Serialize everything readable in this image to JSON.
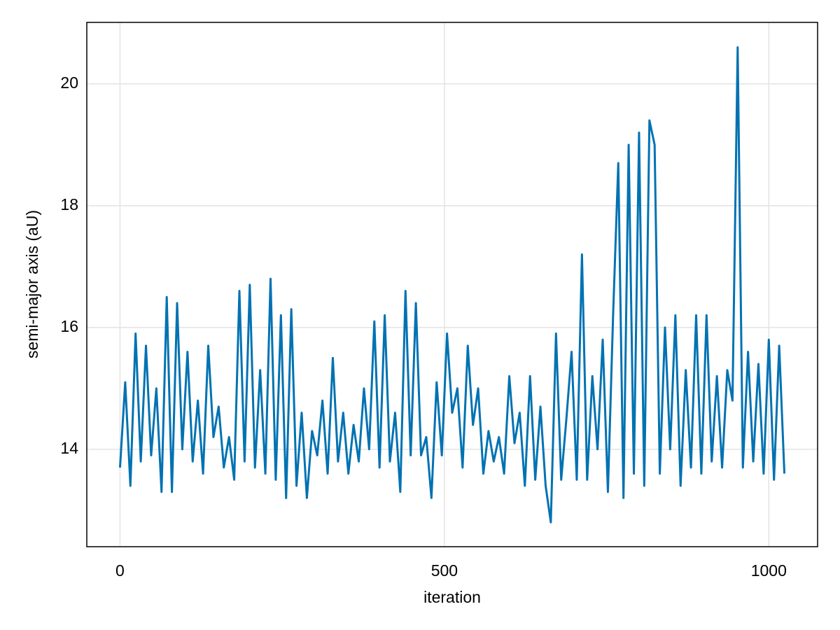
{
  "chart_data": {
    "type": "line",
    "xlabel": "iteration",
    "ylabel": "semi-major axis (aU)",
    "x": [
      0,
      8,
      16,
      24,
      32,
      40,
      48,
      56,
      64,
      72,
      80,
      88,
      96,
      104,
      112,
      120,
      128,
      136,
      144,
      152,
      160,
      168,
      176,
      184,
      192,
      200,
      208,
      216,
      224,
      232,
      240,
      248,
      256,
      264,
      272,
      280,
      288,
      296,
      304,
      312,
      320,
      328,
      336,
      344,
      352,
      360,
      368,
      376,
      384,
      392,
      400,
      408,
      416,
      424,
      432,
      440,
      448,
      456,
      464,
      472,
      480,
      488,
      496,
      504,
      512,
      520,
      528,
      536,
      544,
      552,
      560,
      568,
      576,
      584,
      592,
      600,
      608,
      616,
      624,
      632,
      640,
      648,
      656,
      664,
      672,
      680,
      688,
      696,
      704,
      712,
      720,
      728,
      736,
      744,
      752,
      760,
      768,
      776,
      784,
      792,
      800,
      808,
      816,
      824,
      832,
      840,
      848,
      856,
      864,
      872,
      880,
      888,
      896,
      904,
      912,
      920,
      928,
      936,
      944,
      952,
      960,
      968,
      976,
      984,
      992,
      1000,
      1008,
      1016,
      1024
    ],
    "values": [
      13.7,
      15.1,
      13.4,
      15.9,
      13.8,
      15.7,
      13.9,
      15.0,
      13.3,
      16.5,
      13.3,
      16.4,
      14.0,
      15.6,
      13.8,
      14.8,
      13.6,
      15.7,
      14.2,
      14.7,
      13.7,
      14.2,
      13.5,
      16.6,
      13.8,
      16.7,
      13.7,
      15.3,
      13.6,
      16.8,
      13.5,
      16.2,
      13.2,
      16.3,
      13.4,
      14.6,
      13.2,
      14.3,
      13.9,
      14.8,
      13.6,
      15.5,
      13.8,
      14.6,
      13.6,
      14.4,
      13.8,
      15.0,
      14.0,
      16.1,
      13.7,
      16.2,
      13.8,
      14.6,
      13.3,
      16.6,
      13.9,
      16.4,
      13.9,
      14.2,
      13.2,
      15.1,
      13.9,
      15.9,
      14.6,
      15.0,
      13.7,
      15.7,
      14.4,
      15.0,
      13.6,
      14.3,
      13.8,
      14.2,
      13.6,
      15.2,
      14.1,
      14.6,
      13.4,
      15.2,
      13.5,
      14.7,
      13.4,
      12.8,
      15.9,
      13.5,
      14.5,
      15.6,
      13.5,
      17.2,
      13.5,
      15.2,
      14.0,
      15.8,
      13.3,
      16.2,
      18.7,
      13.2,
      19.0,
      13.6,
      19.2,
      13.4,
      19.4,
      19.0,
      13.6,
      16.0,
      14.0,
      16.2,
      13.4,
      15.3,
      13.7,
      16.2,
      13.6,
      16.2,
      13.8,
      15.2,
      13.7,
      15.3,
      14.8,
      20.6,
      13.7,
      15.6,
      13.8,
      15.4,
      13.6,
      15.8,
      13.5,
      15.7,
      13.6
    ],
    "color": "#0072b2",
    "xlim": [
      -51.2,
      1075.2
    ],
    "ylim": [
      12.4,
      21.01
    ],
    "xticks": [
      0,
      500,
      1000
    ],
    "yticks": [
      14,
      16,
      18,
      20
    ],
    "grid": true
  }
}
